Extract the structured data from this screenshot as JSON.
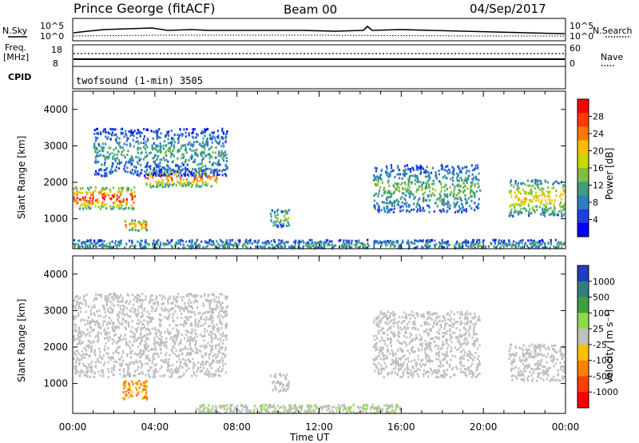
{
  "header": {
    "title": "Prince George (fitACF)",
    "beam": "Beam 00",
    "date": "04/Sep/2017"
  },
  "top_panels": {
    "nsky_label": "N.Sky",
    "nsky_ticks": [
      "10^5",
      "10^0"
    ],
    "nsearch_label": "N.Search",
    "nsearch_ticks": [
      "10^5",
      "10^0"
    ],
    "freq_label_1": "Freq.",
    "freq_label_2": "[MHz]",
    "freq_ticks": [
      "18",
      "8"
    ],
    "nave_label": "Nave",
    "nave_ticks": [
      "60",
      "0"
    ],
    "cpid_label": "CPID",
    "cpid_value": "twofsound (1-min) 3505"
  },
  "colorbars": {
    "power": {
      "label": "Power [dB]",
      "ticks": [
        "28",
        "24",
        "20",
        "16",
        "12",
        "8",
        "4"
      ],
      "colors": [
        "#ff0000",
        "#ff3c00",
        "#ff7a00",
        "#ffc000",
        "#c8d800",
        "#7fbf3f",
        "#3f9f7f",
        "#2f7fbf",
        "#1f3fdf",
        "#0000ff"
      ]
    },
    "velocity": {
      "label": "Velocity [m s⁻¹]",
      "ticks": [
        "1000",
        "500",
        "100",
        "25",
        "-25",
        "-100",
        "-500",
        "-1000"
      ],
      "colors": [
        "#1f3fbf",
        "#2f7f7f",
        "#3f9f3f",
        "#8fd84f",
        "#c0c0c0",
        "#ffc000",
        "#ff8000",
        "#ff4000",
        "#ff0000"
      ]
    }
  },
  "chart_data": [
    {
      "type": "heatmap",
      "title": "",
      "xlabel": "Time UT",
      "ylabel": "Slant Range [km]",
      "xlim": [
        "00:00",
        "00:00"
      ],
      "x_ticks": [
        "00:00",
        "04:00",
        "08:00",
        "12:00",
        "16:00",
        "20:00",
        "00:00"
      ],
      "ylim": [
        180,
        4500
      ],
      "y_ticks": [
        1000,
        2000,
        3000,
        4000
      ],
      "colorbar": "Power [dB]",
      "clim": [
        0,
        30
      ],
      "features": [
        {
          "t": [
            0.0,
            3.0
          ],
          "range": [
            1300,
            1900
          ],
          "value": 26
        },
        {
          "t": [
            2.5,
            3.6
          ],
          "range": [
            700,
            1000
          ],
          "value": 22
        },
        {
          "t": [
            3.5,
            7.0
          ],
          "range": [
            1900,
            2400
          ],
          "value": 22
        },
        {
          "t": [
            1.0,
            7.5
          ],
          "range": [
            2200,
            3500
          ],
          "value": 10
        },
        {
          "t": [
            9.6,
            10.5
          ],
          "range": [
            800,
            1300
          ],
          "value": 14
        },
        {
          "t": [
            14.6,
            19.8
          ],
          "range": [
            1200,
            2500
          ],
          "value": 12
        },
        {
          "t": [
            21.2,
            24.0
          ],
          "range": [
            1100,
            2100
          ],
          "value": 18
        },
        {
          "t": [
            0.0,
            24.0
          ],
          "range": [
            180,
            450
          ],
          "value": 10
        }
      ]
    },
    {
      "type": "heatmap",
      "title": "",
      "xlabel": "Time UT",
      "ylabel": "Slant Range [km]",
      "xlim": [
        "00:00",
        "00:00"
      ],
      "x_ticks": [
        "00:00",
        "04:00",
        "08:00",
        "12:00",
        "16:00",
        "20:00",
        "00:00"
      ],
      "ylim": [
        180,
        4500
      ],
      "y_ticks": [
        1000,
        2000,
        3000,
        4000
      ],
      "colorbar": "Velocity [m s⁻¹]",
      "clim": [
        -1000,
        1000
      ],
      "features": [
        {
          "t": [
            0.0,
            7.5
          ],
          "range": [
            1200,
            3500
          ],
          "value": 0
        },
        {
          "t": [
            2.4,
            3.6
          ],
          "range": [
            600,
            1100
          ],
          "value": -400
        },
        {
          "t": [
            9.6,
            10.5
          ],
          "range": [
            800,
            1300
          ],
          "value": 0
        },
        {
          "t": [
            14.6,
            19.8
          ],
          "range": [
            1200,
            3000
          ],
          "value": 0
        },
        {
          "t": [
            21.2,
            24.0
          ],
          "range": [
            1100,
            2100
          ],
          "value": 0
        },
        {
          "t": [
            6.0,
            16.0
          ],
          "range": [
            180,
            450
          ],
          "value": 60
        }
      ]
    }
  ]
}
